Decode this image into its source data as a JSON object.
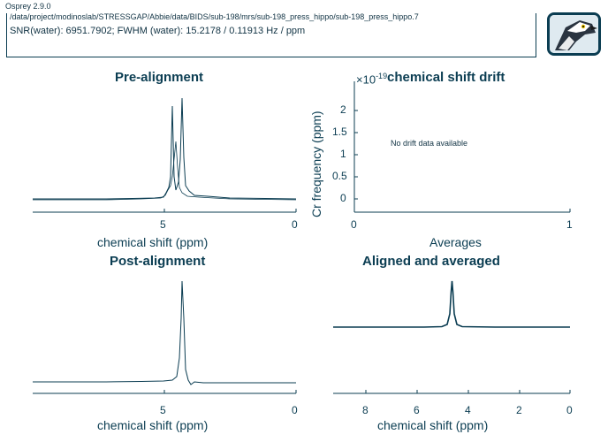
{
  "header": {
    "version": "Osprey 2.9.0",
    "file_path": "/data/project/modinoslab/STRESSGAP/Abbie/data/BIDS/sub-198/mrs/sub-198_press_hippo/sub-198_press_hippo.7",
    "snr_line": "SNR(water): 6951.7902; FWHM (water): 15.2178 / 0.11913 Hz / ppm",
    "logo_icon": "osprey-bird-icon"
  },
  "panels": {
    "pre": {
      "title": "Pre-alignment",
      "xlabel": "chemical shift (ppm)",
      "ticks": [
        "5",
        "0"
      ]
    },
    "drift": {
      "title": "chemical shift drift",
      "ylabel": "Cr frequency (ppm)",
      "xlabel": "Averages",
      "exponent_prefix": "×10",
      "exponent": "-19",
      "yticks": [
        "2",
        "1.5",
        "1",
        "0.5",
        "0"
      ],
      "xticks": [
        "0",
        "1"
      ],
      "message": "No drift data available"
    },
    "post": {
      "title": "Post-alignment",
      "xlabel": "chemical shift (ppm)",
      "ticks": [
        "5",
        "0"
      ]
    },
    "avg": {
      "title": "Aligned and averaged",
      "xlabel": "chemical shift (ppm)",
      "ticks": [
        "8",
        "6",
        "4",
        "2",
        "0"
      ]
    }
  },
  "colors": {
    "line": "#0b3d52",
    "text": "#0b3d52"
  }
}
